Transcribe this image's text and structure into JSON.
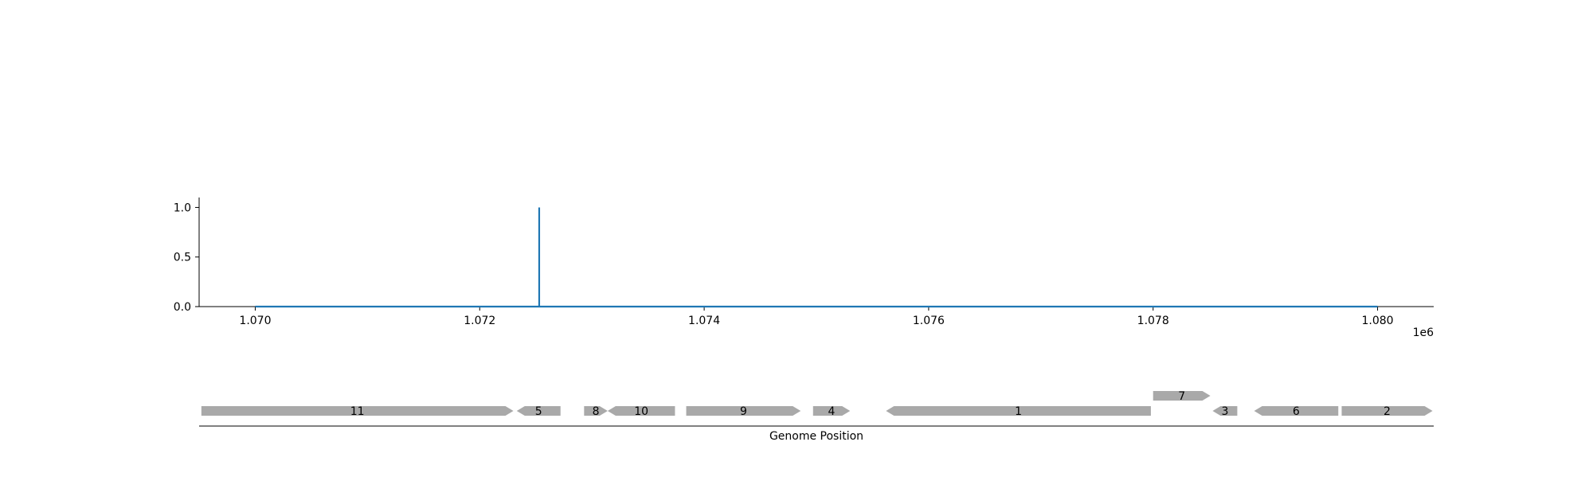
{
  "chart_data": [
    {
      "type": "line",
      "title": "",
      "xlabel": "",
      "ylabel": "",
      "x_offset_label": "1e6",
      "xlim": [
        1069500,
        1080500
      ],
      "ylim": [
        0,
        1.1
      ],
      "x_ticks": [
        1070000,
        1072000,
        1074000,
        1076000,
        1078000,
        1080000
      ],
      "x_tick_labels": [
        "1.070",
        "1.072",
        "1.074",
        "1.076",
        "1.078",
        "1.080"
      ],
      "y_ticks": [
        0,
        0.5,
        1
      ],
      "y_tick_labels": [
        "0.0",
        "0.5",
        "1.0"
      ],
      "grid": false,
      "color": "#1f77b4",
      "series": [
        {
          "x": [
            1070000,
            1072530,
            1072530,
            1072530,
            1080000
          ],
          "y": [
            0,
            0,
            1,
            0,
            0
          ]
        }
      ]
    },
    {
      "type": "gene_track",
      "xlabel": "Genome Position",
      "xlim": [
        1069500,
        1080500
      ],
      "color": "#a9a9a9",
      "genes": [
        {
          "label": "11",
          "start": 1069520,
          "end": 1072300,
          "strand": "+",
          "row": 0
        },
        {
          "label": "5",
          "start": 1072330,
          "end": 1072720,
          "strand": "-",
          "row": 0
        },
        {
          "label": "8",
          "start": 1072930,
          "end": 1073140,
          "strand": "+",
          "row": 0
        },
        {
          "label": "10",
          "start": 1073140,
          "end": 1073740,
          "strand": "-",
          "row": 0
        },
        {
          "label": "9",
          "start": 1073840,
          "end": 1074860,
          "strand": "+",
          "row": 0
        },
        {
          "label": "4",
          "start": 1074970,
          "end": 1075300,
          "strand": "+",
          "row": 0
        },
        {
          "label": "1",
          "start": 1075620,
          "end": 1077980,
          "strand": "-",
          "row": 0
        },
        {
          "label": "7",
          "start": 1078000,
          "end": 1078510,
          "strand": "+",
          "row": 1
        },
        {
          "label": "3",
          "start": 1078530,
          "end": 1078750,
          "strand": "-",
          "row": 0
        },
        {
          "label": "6",
          "start": 1078900,
          "end": 1079650,
          "strand": "-",
          "row": 0
        },
        {
          "label": "2",
          "start": 1079680,
          "end": 1080490,
          "strand": "+",
          "row": 0
        }
      ]
    }
  ]
}
